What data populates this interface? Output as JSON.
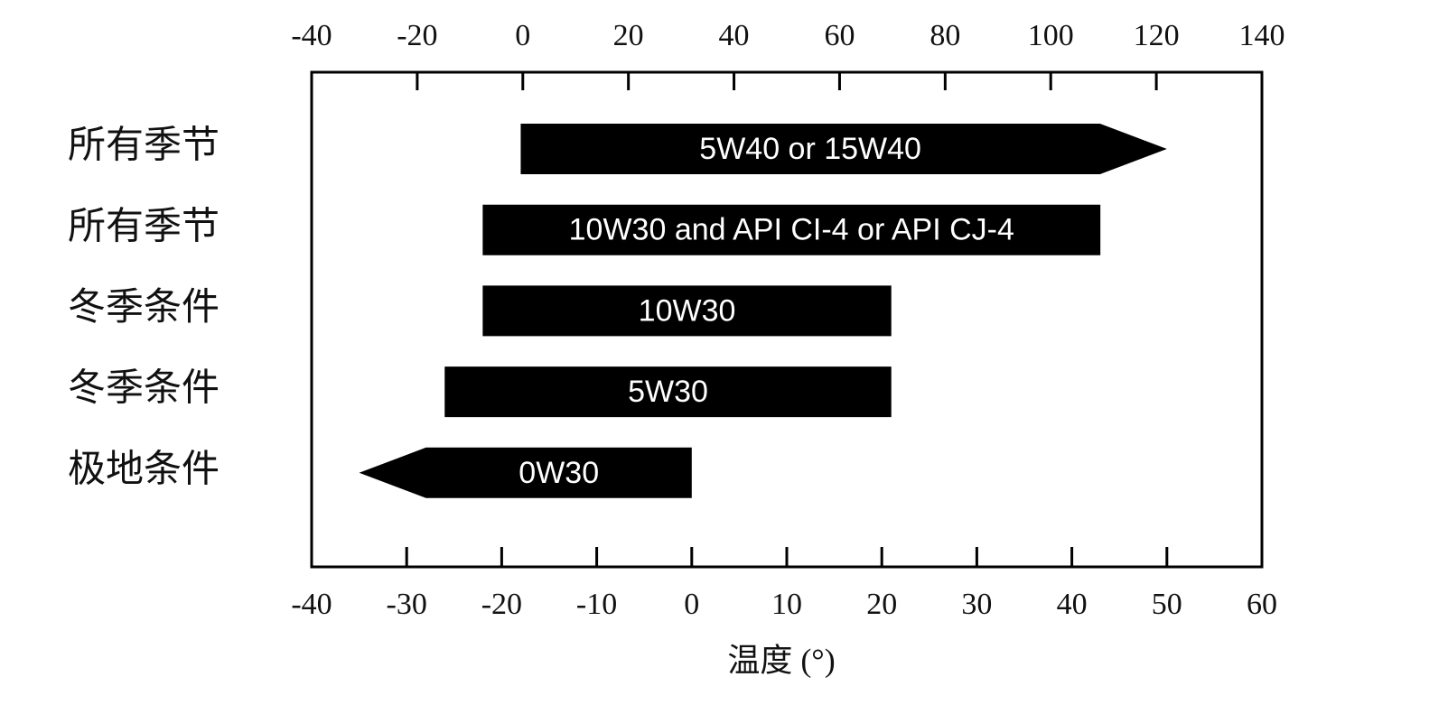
{
  "chart_data": {
    "type": "range_bar",
    "categories": [
      "所有季节",
      "所有季节",
      "冬季条件",
      "冬季条件",
      "极地条件"
    ],
    "starts": [
      -18,
      -22,
      -22,
      -26,
      0
    ],
    "ends": [
      50,
      43,
      21,
      21,
      -35
    ],
    "arrows": [
      "right",
      null,
      null,
      null,
      "left"
    ],
    "bar_labels": [
      "5W40 or 15W40",
      "10W30 and API CI-4 or API CJ-4",
      "10W30",
      "5W30",
      "0W30"
    ],
    "color": "#000000",
    "xlabel": "温度 (°)",
    "xlim": [
      -40,
      60
    ],
    "xticks": [
      -40,
      -30,
      -20,
      -10,
      0,
      10,
      20,
      30,
      40,
      50,
      60
    ],
    "x2lim": [
      -40,
      140
    ],
    "x2ticks": [
      -40,
      -20,
      0,
      20,
      40,
      60,
      80,
      100,
      120,
      140
    ]
  }
}
